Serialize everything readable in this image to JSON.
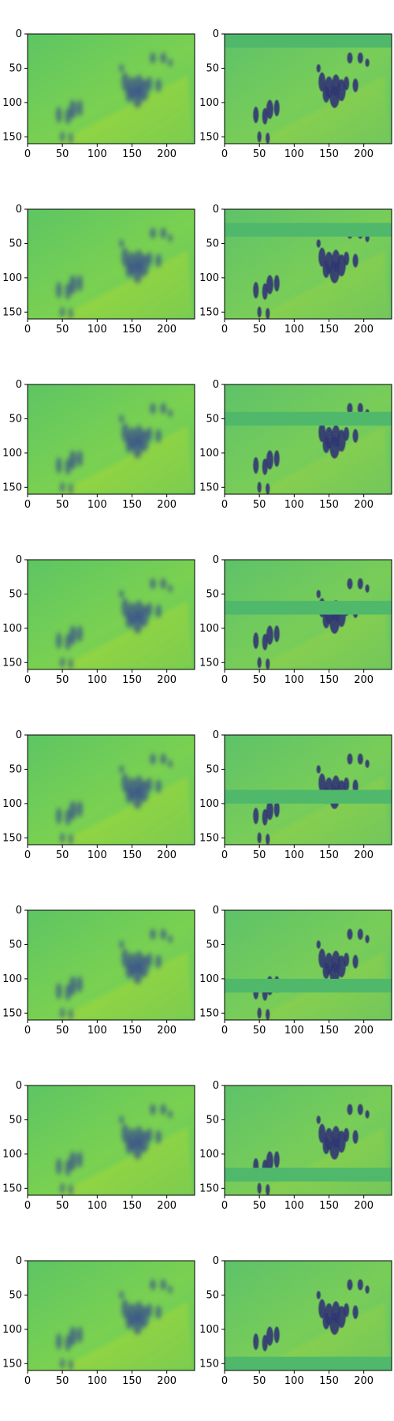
{
  "chart_data": {
    "type": "heatmap",
    "layout": {
      "rows": 8,
      "cols": 2
    },
    "colormap": "viridis",
    "axes": {
      "x_ticks": [
        0,
        50,
        100,
        150,
        200
      ],
      "y_ticks": [
        0,
        50,
        100,
        150
      ],
      "xlim": [
        0,
        240
      ],
      "ylim": [
        160,
        0
      ]
    },
    "left_column": {
      "description": "blurred reconstruction",
      "masked_band": null
    },
    "right_column": {
      "description": "sharp image with a horizontally masked band",
      "masked_bands": [
        [
          0,
          20
        ],
        [
          20,
          40
        ],
        [
          40,
          60
        ],
        [
          60,
          80
        ],
        [
          80,
          100
        ],
        [
          100,
          120
        ],
        [
          120,
          140
        ],
        [
          140,
          160
        ]
      ]
    }
  },
  "colors": {
    "background_green": "#5dc563",
    "light_green": "#7ad151",
    "yellow": "#dce319",
    "dark_blue": "#3b528b",
    "navy": "#2c2f6e",
    "mask_fill": "#4fb86b"
  }
}
